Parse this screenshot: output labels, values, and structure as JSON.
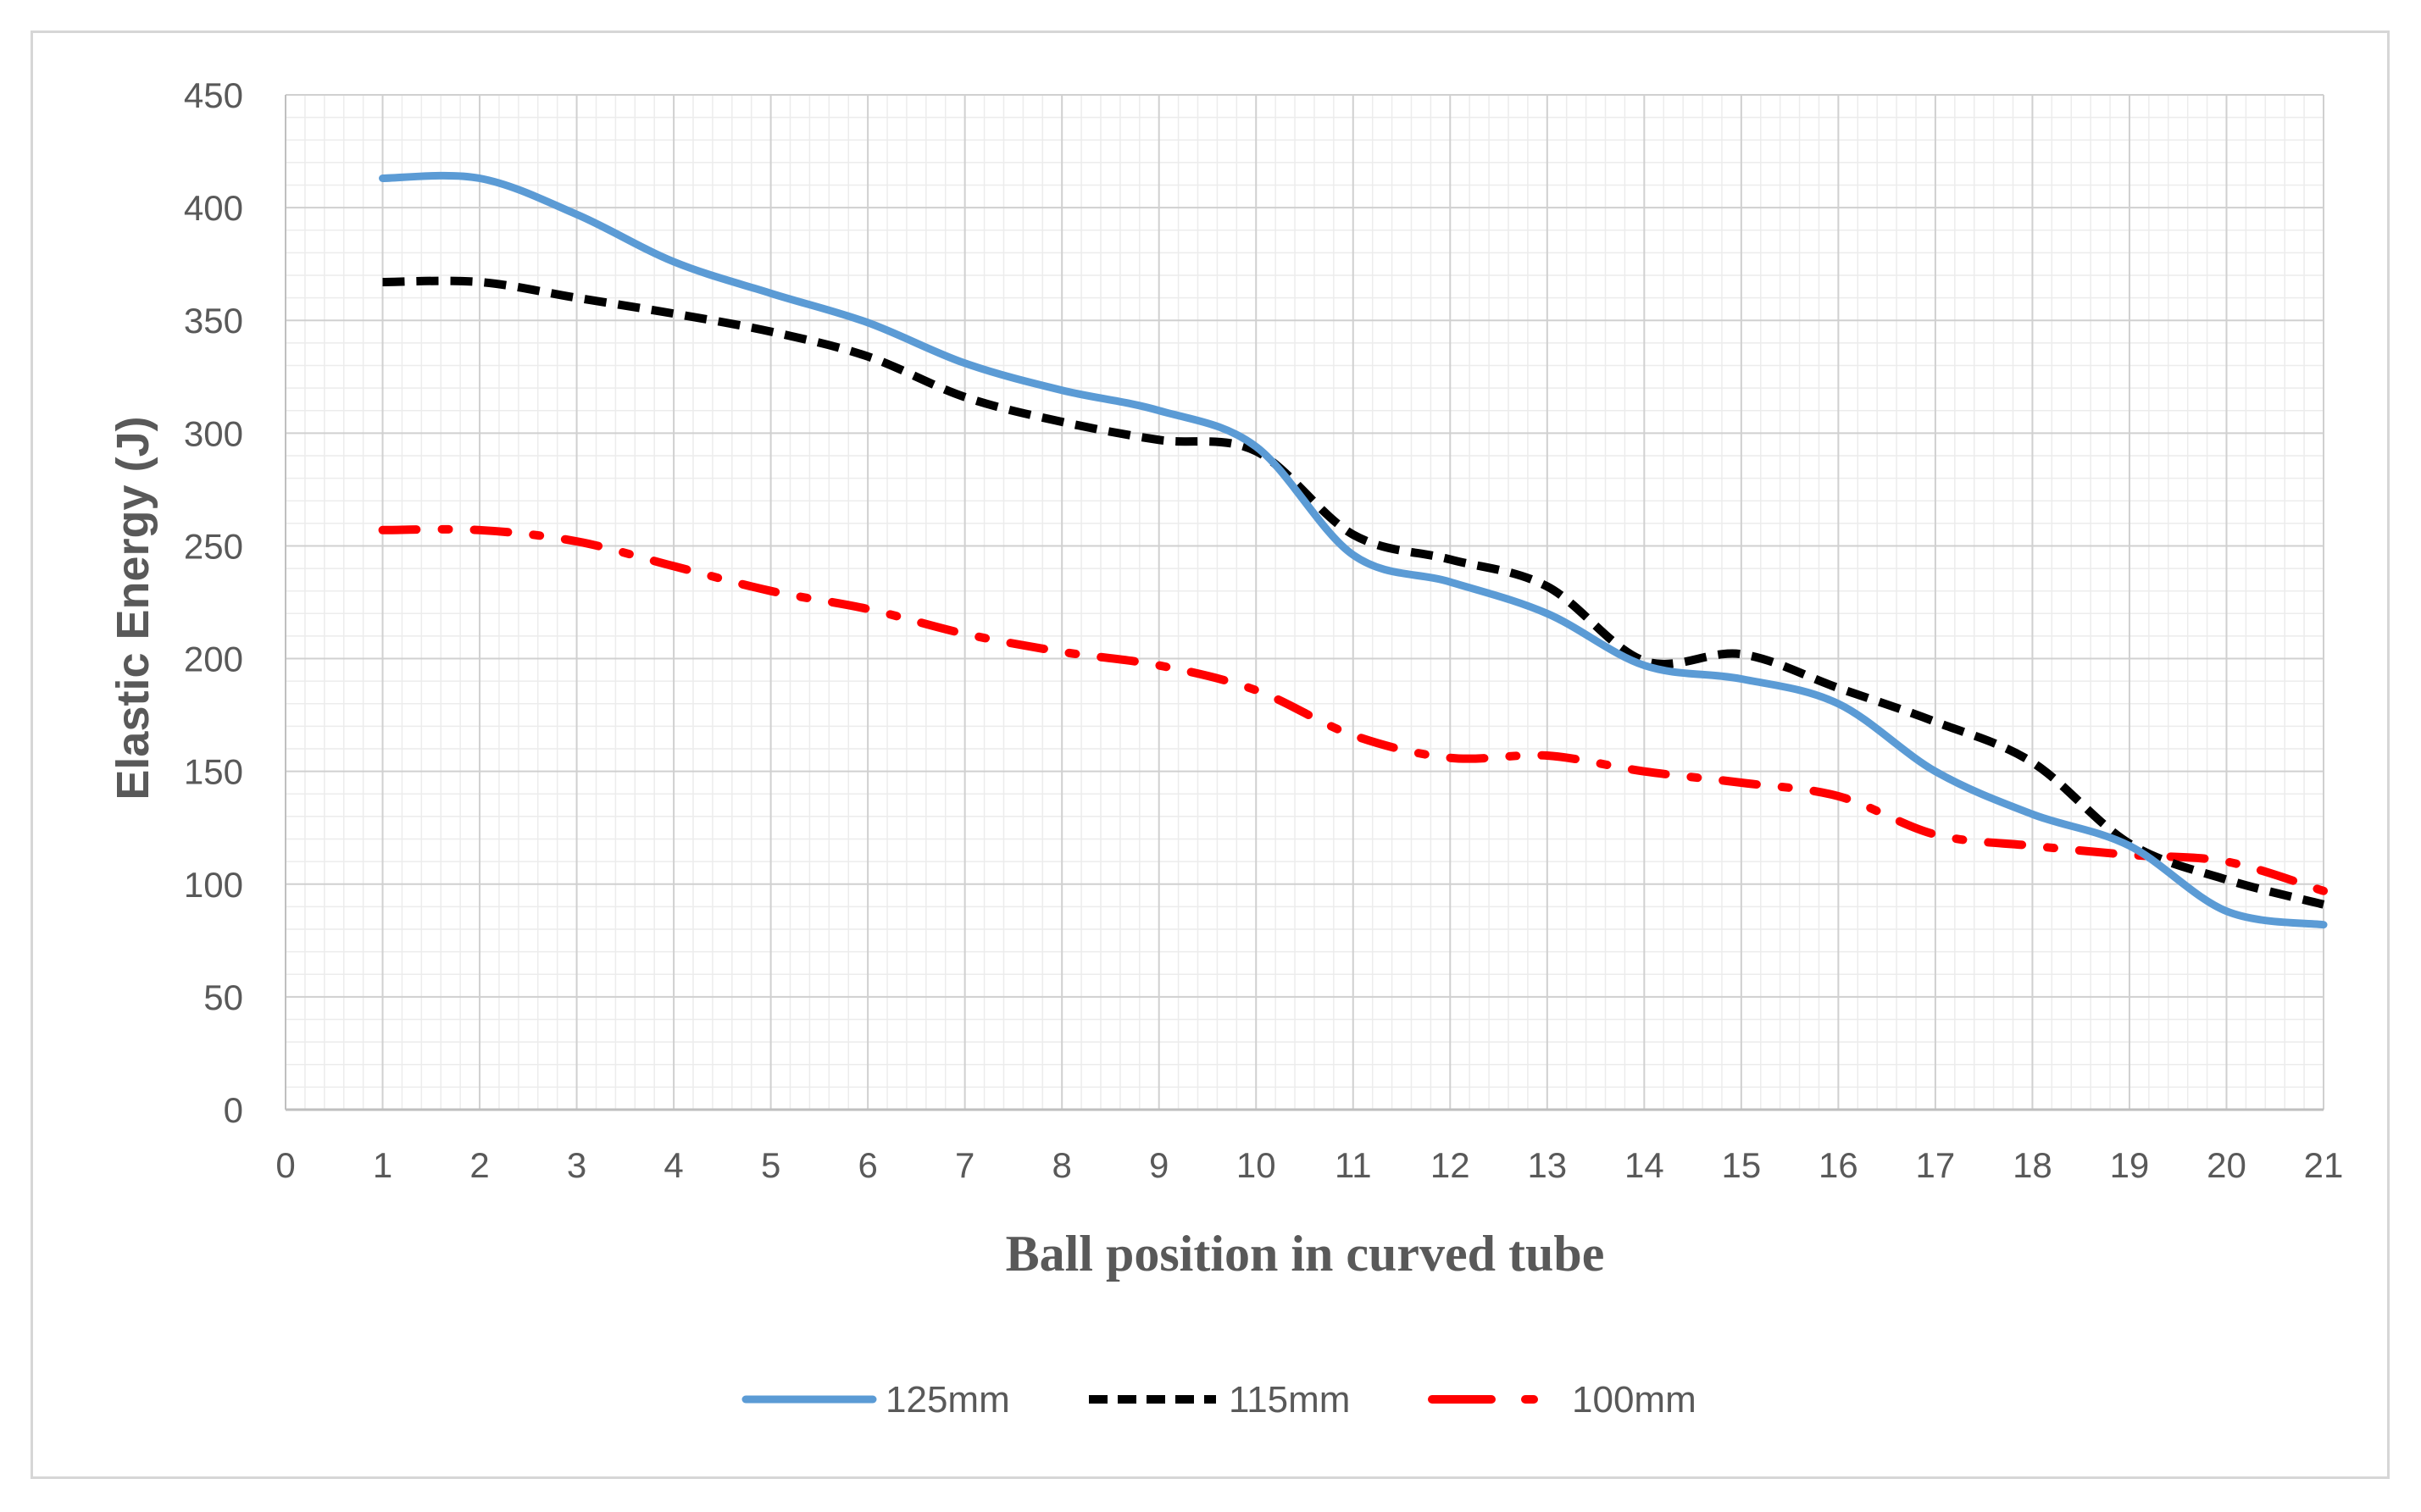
{
  "chart_data": {
    "type": "line",
    "title": "",
    "xlabel": "Ball position in curved tube",
    "ylabel": "Elastic Energy (J)",
    "xlim": [
      0,
      21
    ],
    "ylim": [
      0,
      450
    ],
    "x_ticks": [
      0,
      1,
      2,
      3,
      4,
      5,
      6,
      7,
      8,
      9,
      10,
      11,
      12,
      13,
      14,
      15,
      16,
      17,
      18,
      19,
      20,
      21
    ],
    "y_ticks": [
      0,
      50,
      100,
      150,
      200,
      250,
      300,
      350,
      400,
      450
    ],
    "grid": true,
    "legend_position": "bottom",
    "x": [
      1,
      2,
      3,
      4,
      5,
      6,
      7,
      8,
      9,
      10,
      11,
      12,
      13,
      14,
      15,
      16,
      17,
      18,
      19,
      20,
      21
    ],
    "series": [
      {
        "name": "125mm",
        "color": "#5b9bd5",
        "style": "solid",
        "values": [
          413,
          413,
          397,
          376,
          362,
          349,
          331,
          319,
          310,
          294,
          246,
          234,
          220,
          197,
          191,
          180,
          150,
          131,
          117,
          88,
          82
        ]
      },
      {
        "name": "115mm",
        "color": "#000000",
        "style": "dashed",
        "values": [
          367,
          367,
          360,
          353,
          345,
          334,
          316,
          305,
          297,
          292,
          255,
          244,
          232,
          199,
          202,
          187,
          172,
          154,
          118,
          102,
          91
        ]
      },
      {
        "name": "100mm",
        "color": "#ff0000",
        "style": "dash-dot",
        "values": [
          257,
          257,
          252,
          241,
          230,
          222,
          211,
          203,
          197,
          186,
          166,
          156,
          157,
          150,
          145,
          139,
          122,
          117,
          113,
          110,
          97
        ]
      }
    ]
  }
}
